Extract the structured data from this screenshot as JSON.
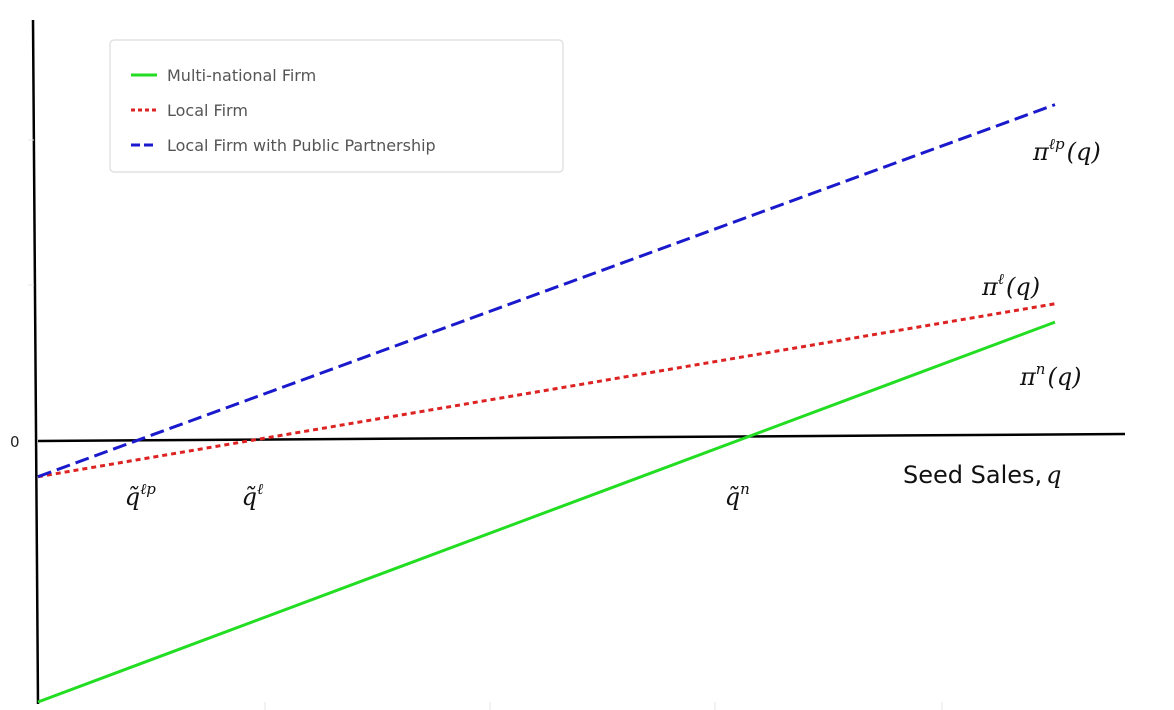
{
  "chart_data": {
    "type": "line",
    "title": "",
    "xlabel": "Seed Sales,",
    "xlabel_var": "q",
    "ylabel": "",
    "zero_label": "0",
    "xlim": [
      0,
      1
    ],
    "ylim": [
      -1,
      1.15
    ],
    "grid": false,
    "legend_position": "top-left",
    "series": [
      {
        "name": "Multi-national Firm",
        "key": "n",
        "label_base": "π",
        "label_sup": "n",
        "label_arg": "(q)",
        "color": "#22dd22",
        "dash": "solid",
        "x": [
          0,
          1
        ],
        "y": [
          -1,
          0.45
        ]
      },
      {
        "name": "Local Firm",
        "key": "l",
        "label_base": "π",
        "label_sup": "ℓ",
        "label_arg": "(q)",
        "color": "#dd2222",
        "dash": "dotted",
        "x": [
          0,
          1
        ],
        "y": [
          -0.14,
          0.52
        ]
      },
      {
        "name": "Local Firm with Public Partnership",
        "key": "lp",
        "label_base": "π",
        "label_sup": "ℓp",
        "label_arg": "(q)",
        "color": "#1a1acc",
        "dash": "dashed",
        "x": [
          0,
          1
        ],
        "y": [
          -0.14,
          1.28
        ]
      }
    ],
    "annotations": [
      {
        "base": "q̃",
        "sup": "ℓp",
        "x": 0.1
      },
      {
        "base": "q̃",
        "sup": "ℓ",
        "x": 0.215
      },
      {
        "base": "q̃",
        "sup": "n",
        "x": 0.69
      }
    ]
  },
  "colors": {
    "axis": "#000000",
    "legend_border": "#dcdcdc"
  }
}
